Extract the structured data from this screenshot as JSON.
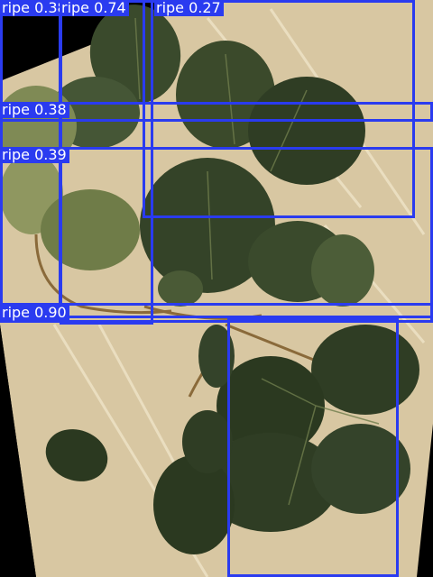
{
  "image": {
    "description_colors": {
      "background": "#000000",
      "tray": "#d8c7a2",
      "leaf_dark": "#2f3d24",
      "leaf_mid": "#4c5d38",
      "leaf_light": "#7f8a55",
      "stem": "#8a6a3a",
      "box": "#2a3bf0"
    }
  },
  "detections": [
    {
      "label": "ripe 0.38"
    },
    {
      "label": "ripe 0.74"
    },
    {
      "label": "ripe 0.27"
    },
    {
      "label": "ripe 0.38"
    },
    {
      "label": "ripe 0.39"
    },
    {
      "label": "ripe 0.90"
    },
    {
      "label": ""
    }
  ]
}
